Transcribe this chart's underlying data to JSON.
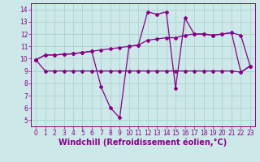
{
  "line1_x": [
    0,
    1,
    2,
    3,
    4,
    5,
    6,
    7,
    8,
    9,
    10,
    11,
    12,
    13,
    14,
    15,
    16,
    17,
    18,
    19,
    20,
    21,
    22,
    23
  ],
  "line1_y": [
    9.9,
    10.3,
    10.3,
    10.35,
    10.4,
    10.5,
    10.6,
    10.7,
    10.8,
    10.9,
    11.0,
    11.1,
    11.5,
    11.6,
    11.7,
    11.7,
    11.9,
    12.0,
    12.0,
    11.9,
    12.0,
    12.1,
    11.9,
    9.4
  ],
  "line2_x": [
    0,
    1,
    2,
    3,
    4,
    5,
    6,
    7,
    8,
    9,
    10,
    11,
    12,
    13,
    14,
    15,
    16,
    17,
    18,
    19,
    20,
    21,
    22,
    23
  ],
  "line2_y": [
    9.9,
    10.3,
    10.3,
    10.35,
    10.4,
    10.5,
    10.6,
    7.7,
    6.0,
    5.2,
    11.0,
    11.1,
    13.8,
    13.6,
    13.8,
    7.6,
    13.3,
    12.0,
    12.0,
    11.9,
    12.0,
    12.1,
    8.9,
    9.4
  ],
  "line3_x": [
    0,
    1,
    2,
    3,
    4,
    5,
    6,
    7,
    8,
    9,
    10,
    11,
    12,
    13,
    14,
    15,
    16,
    17,
    18,
    19,
    20,
    21,
    22,
    23
  ],
  "line3_y": [
    9.9,
    9.0,
    9.0,
    9.0,
    9.0,
    9.0,
    9.0,
    9.0,
    9.0,
    9.0,
    9.0,
    9.0,
    9.0,
    9.0,
    9.0,
    9.0,
    9.0,
    9.0,
    9.0,
    9.0,
    9.0,
    9.0,
    8.9,
    9.4
  ],
  "bg_color": "#cce8e8",
  "grid_color": "#aacccc",
  "line_color": "#880088",
  "marker": "D",
  "marker_size": 2.0,
  "line_width": 0.9,
  "xlim": [
    -0.5,
    23.5
  ],
  "ylim": [
    4.5,
    14.5
  ],
  "yticks": [
    5,
    6,
    7,
    8,
    9,
    10,
    11,
    12,
    13,
    14
  ],
  "xticks": [
    0,
    1,
    2,
    3,
    4,
    5,
    6,
    7,
    8,
    9,
    10,
    11,
    12,
    13,
    14,
    15,
    16,
    17,
    18,
    19,
    20,
    21,
    22,
    23
  ],
  "xlabel": "Windchill (Refroidissement éolien,°C)",
  "xlabel_fontsize": 7.0,
  "tick_fontsize": 5.5
}
